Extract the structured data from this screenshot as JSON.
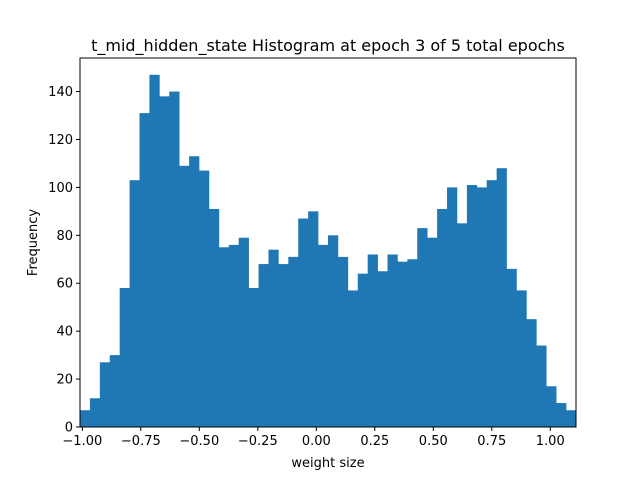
{
  "chart_data": {
    "type": "bar",
    "title": "t_mid_hidden_state Histogram at epoch 3 of 5 total epochs",
    "xlabel": "weight size",
    "ylabel": "Frequency",
    "xlim": [
      -1.01,
      1.11
    ],
    "ylim": [
      0,
      154
    ],
    "xticks": [
      -1.0,
      -0.75,
      -0.5,
      -0.25,
      0.0,
      0.25,
      0.5,
      0.75,
      1.0
    ],
    "xtick_labels": [
      "−1.00",
      "−0.75",
      "−0.50",
      "−0.25",
      "0.00",
      "0.25",
      "0.50",
      "0.75",
      "1.00"
    ],
    "yticks": [
      0,
      20,
      40,
      60,
      80,
      100,
      120,
      140
    ],
    "ytick_labels": [
      "0",
      "20",
      "40",
      "60",
      "80",
      "100",
      "120",
      "140"
    ],
    "bin_start": -1.01,
    "bin_width": 0.0424,
    "values": [
      7,
      12,
      27,
      30,
      58,
      103,
      131,
      147,
      138,
      140,
      109,
      113,
      107,
      91,
      75,
      76,
      79,
      58,
      68,
      74,
      68,
      71,
      87,
      90,
      76,
      80,
      71,
      57,
      64,
      72,
      65,
      72,
      69,
      70,
      83,
      79,
      91,
      100,
      85,
      101,
      100,
      103,
      108,
      66,
      57,
      45,
      34,
      17,
      10,
      7
    ],
    "bar_color": "#1f77b4",
    "grid": false
  }
}
